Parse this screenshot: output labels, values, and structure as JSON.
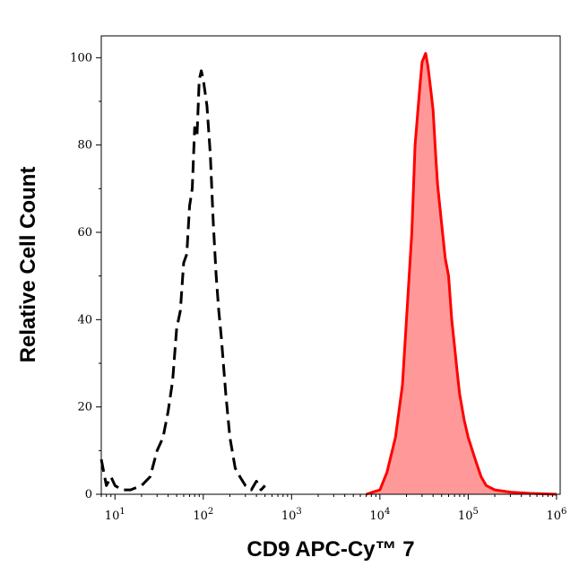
{
  "chart_data": {
    "type": "area",
    "title": "",
    "xlabel": "CD9 APC-Cy™ 7",
    "ylabel": "Relative Cell Count",
    "x_scale": "log",
    "xlim": [
      7,
      1100000
    ],
    "ylim": [
      0,
      105
    ],
    "grid": false,
    "legend": "none",
    "y_ticks": [
      0,
      20,
      40,
      60,
      80,
      100
    ],
    "x_ticks": [
      {
        "base": "10",
        "exp": "1",
        "value": 10
      },
      {
        "base": "10",
        "exp": "2",
        "value": 100
      },
      {
        "base": "10",
        "exp": "3",
        "value": 1000
      },
      {
        "base": "10",
        "exp": "4",
        "value": 10000
      },
      {
        "base": "10",
        "exp": "5",
        "value": 100000
      },
      {
        "base": "10",
        "exp": "6",
        "value": 1000000
      }
    ],
    "series": [
      {
        "style": "dashed",
        "color": "#000000",
        "fill": "none",
        "x": [
          7,
          8,
          9,
          10,
          12,
          15,
          20,
          25,
          30,
          35,
          40,
          45,
          50,
          55,
          60,
          65,
          70,
          75,
          80,
          85,
          90,
          95,
          100,
          110,
          120,
          130,
          140,
          150,
          160,
          180,
          200,
          230,
          260,
          300,
          350,
          400,
          450,
          500
        ],
        "values": [
          8,
          2,
          4,
          2,
          1,
          1,
          2,
          4,
          10,
          13,
          19,
          26,
          38,
          42,
          53,
          55,
          66,
          70,
          84,
          82,
          95,
          97,
          95,
          89,
          78,
          62,
          50,
          42,
          36,
          23,
          13,
          6,
          4,
          2,
          1,
          3,
          1,
          2
        ]
      },
      {
        "style": "solid",
        "color": "#ff0000",
        "fill": "#ff9999",
        "x": [
          7000,
          10000,
          12000,
          15000,
          18000,
          20000,
          23000,
          25000,
          28000,
          30000,
          33000,
          35000,
          38000,
          40000,
          43000,
          45000,
          50000,
          55000,
          60000,
          65000,
          70000,
          75000,
          80000,
          90000,
          100000,
          120000,
          140000,
          160000,
          200000,
          300000,
          500000,
          1000000
        ],
        "values": [
          0,
          1,
          5,
          13,
          25,
          40,
          60,
          80,
          92,
          99,
          101,
          98,
          92,
          88,
          77,
          71,
          62,
          54,
          50,
          40,
          34,
          28,
          23,
          17,
          13,
          8,
          4,
          2,
          1,
          0.5,
          0.2,
          0
        ]
      }
    ]
  }
}
